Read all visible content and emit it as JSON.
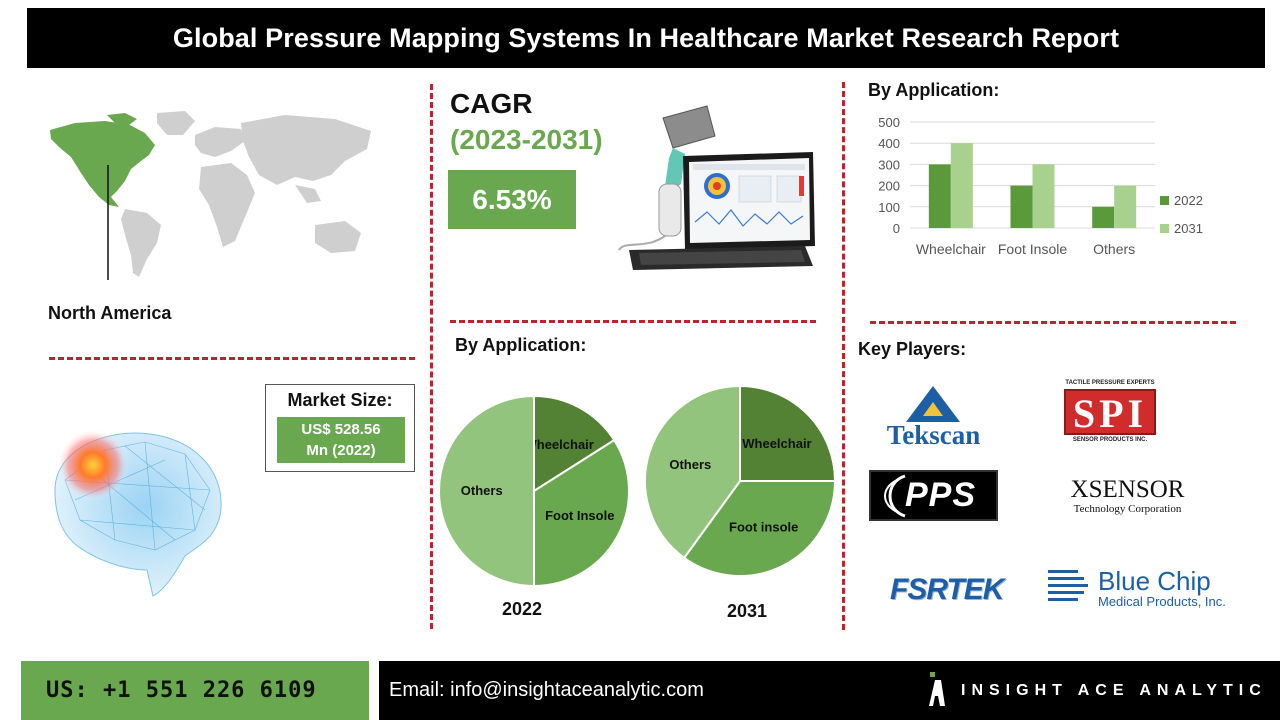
{
  "header": {
    "title": "Global Pressure Mapping Systems In Healthcare Market Research Report"
  },
  "region": {
    "label": "North America"
  },
  "cagr": {
    "title": "CAGR",
    "period": "(2023-2031)",
    "value": "6.53%"
  },
  "market_size": {
    "title": "Market Size:",
    "value_line1": "US$ 528.56",
    "value_line2": "Mn (2022)"
  },
  "pie_section": {
    "heading": "By Application:"
  },
  "bar_section": {
    "heading": "By Application:"
  },
  "key_players": {
    "heading": "Key Players:",
    "tekscan": "Tekscan",
    "spi_top": "TACTILE PRESSURE EXPERTS",
    "spi_logo": "SPI",
    "spi_bottom": "SENSOR PRODUCTS INC.",
    "pps": "PPS",
    "xsensor": "XSENSOR",
    "xsensor_sub": "Technology Corporation",
    "fsrtek": "FSRTEK",
    "bluechip": "Blue Chip",
    "bluechip_sub": "Medical Products, Inc."
  },
  "footer": {
    "phone": "US: +1 551 226 6109",
    "email": "Email: info@insightaceanalytic.com",
    "brand": "INSIGHT ACE ANALYTIC"
  },
  "colors": {
    "green": "#6aa84f",
    "dark_green": "#548235",
    "light_green": "#a9d18e",
    "pie_light": "#93c47d",
    "accent_red": "#b8262a"
  },
  "chart_data": [
    {
      "type": "bar",
      "categories": [
        "Wheelchair",
        "Foot Insole",
        "Others"
      ],
      "series": [
        {
          "name": "2022",
          "values": [
            300,
            200,
            100
          ],
          "color": "#5a9a3a"
        },
        {
          "name": "2031",
          "values": [
            400,
            300,
            200
          ],
          "color": "#a9d18e"
        }
      ],
      "ylim": [
        0,
        500
      ],
      "yticks": [
        "0",
        "100",
        "200",
        "300",
        "400",
        "500"
      ],
      "grid": true,
      "legend": "right"
    },
    {
      "type": "pie",
      "year": "2022",
      "slices": [
        {
          "label": "Wheelchair",
          "value": 16,
          "color": "#548235"
        },
        {
          "label": "Foot Insole",
          "value": 34,
          "color": "#6aa84f"
        },
        {
          "label": "Others",
          "value": 50,
          "color": "#93c47d"
        }
      ]
    },
    {
      "type": "pie",
      "year": "2031",
      "slices": [
        {
          "label": "Wheelchair",
          "value": 25,
          "color": "#548235"
        },
        {
          "label": "Foot insole",
          "value": 35,
          "color": "#6aa84f"
        },
        {
          "label": "Others",
          "value": 40,
          "color": "#93c47d"
        }
      ]
    }
  ]
}
